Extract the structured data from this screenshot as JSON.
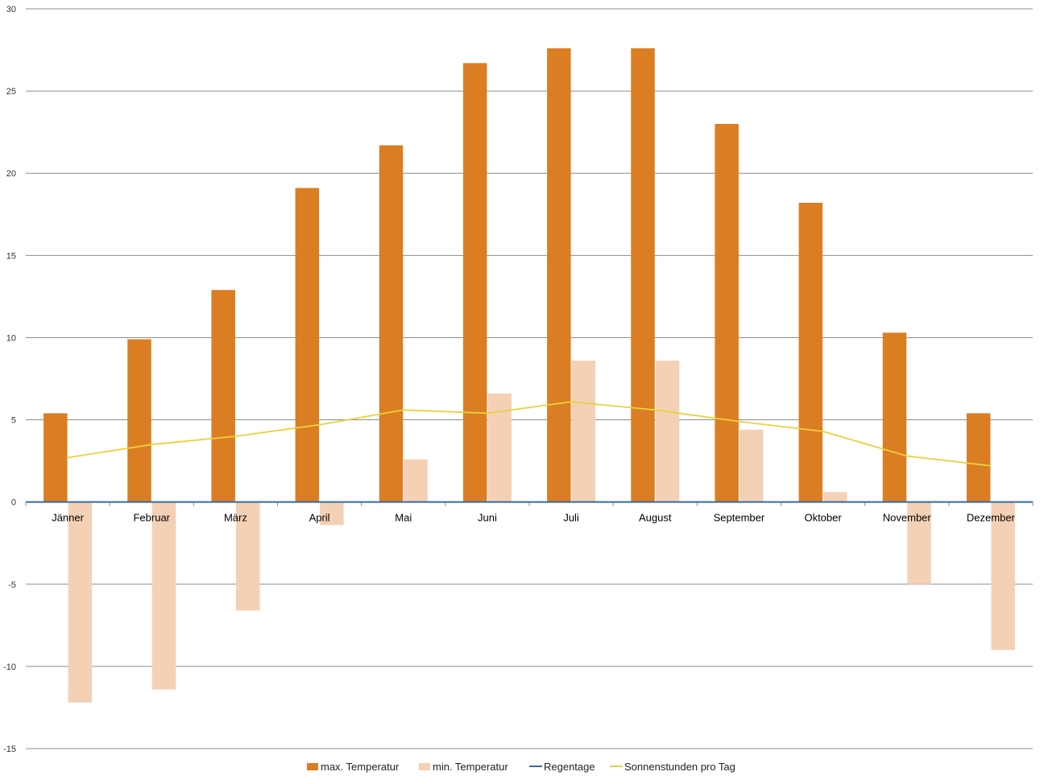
{
  "chart_data": {
    "type": "bar",
    "categories": [
      "Jänner",
      "Februar",
      "März",
      "April",
      "Mai",
      "Juni",
      "Juli",
      "August",
      "September",
      "Oktober",
      "November",
      "Dezember"
    ],
    "series": [
      {
        "name": "max. Temperatur",
        "type": "bar",
        "color": "#db7d22",
        "values": [
          5.4,
          9.9,
          12.9,
          19.1,
          21.7,
          26.7,
          27.6,
          27.6,
          23.0,
          18.2,
          10.3,
          5.4
        ]
      },
      {
        "name": "min. Temperatur",
        "type": "bar",
        "color": "#f4d0b5",
        "values": [
          -12.2,
          -11.4,
          -6.6,
          -1.4,
          2.6,
          6.6,
          8.6,
          8.6,
          4.4,
          0.6,
          -5.0,
          -9.0
        ]
      },
      {
        "name": "Regentage",
        "type": "line",
        "color": "#2d6ea8",
        "values": [
          0,
          0,
          0,
          0,
          0,
          0,
          0,
          0,
          0,
          0,
          0,
          0
        ]
      },
      {
        "name": "Sonnenstunden pro Tag",
        "type": "line",
        "color": "#e8d23a",
        "values": [
          2.7,
          3.5,
          4.0,
          4.7,
          5.6,
          5.4,
          6.1,
          5.6,
          4.9,
          4.3,
          2.8,
          2.2
        ]
      }
    ],
    "y_ticks": [
      "30",
      "25",
      "20",
      "15",
      "10",
      "5",
      "0",
      "-5",
      "-10",
      "-15"
    ],
    "ylim": [
      -15,
      30
    ],
    "grid": true,
    "legend_position": "bottom",
    "title": "",
    "xlabel": "",
    "ylabel": ""
  }
}
